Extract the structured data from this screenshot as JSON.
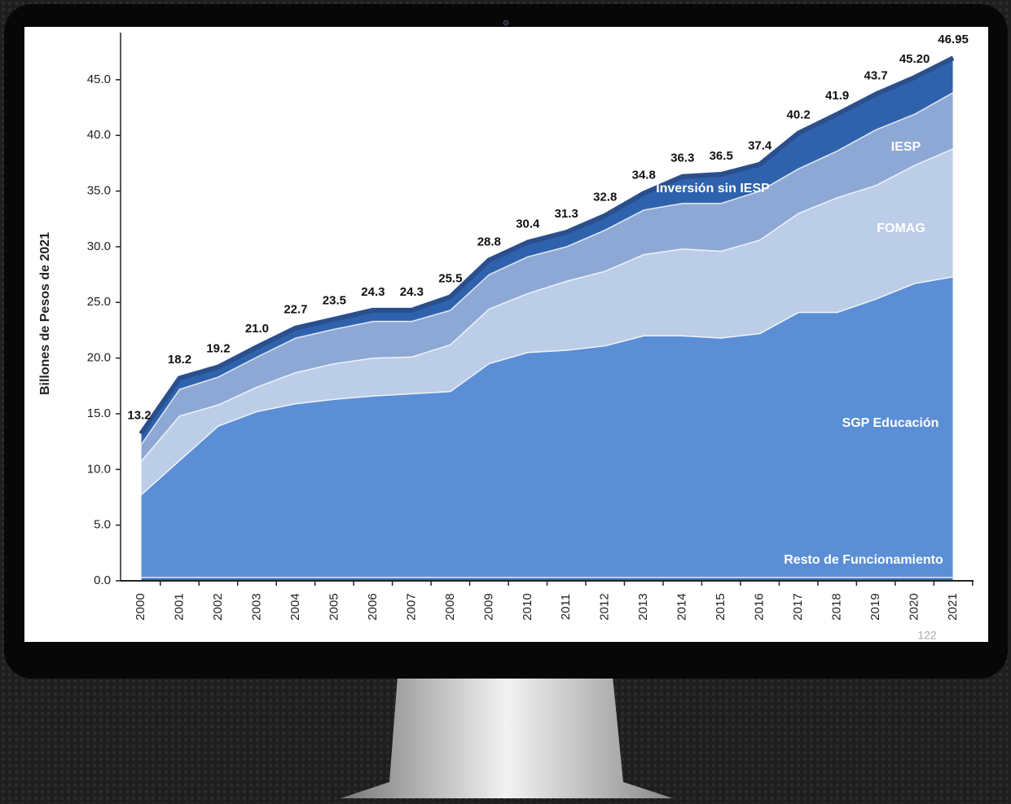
{
  "chart_data": {
    "type": "stacked-area",
    "y_label": "Billones de Pesos de 2021",
    "page_number": "122",
    "categories": [
      "2000",
      "2001",
      "2002",
      "2003",
      "2004",
      "2005",
      "2006",
      "2007",
      "2008",
      "2009",
      "2010",
      "2011",
      "2012",
      "2013",
      "2014",
      "2015",
      "2016",
      "2017",
      "2018",
      "2019",
      "2020",
      "2021"
    ],
    "series": [
      {
        "name": "Resto de Funcionamiento",
        "color": "#3d6db5",
        "values": [
          0.3,
          0.3,
          0.3,
          0.3,
          0.3,
          0.3,
          0.3,
          0.3,
          0.3,
          0.3,
          0.3,
          0.3,
          0.3,
          0.3,
          0.3,
          0.3,
          0.3,
          0.3,
          0.3,
          0.3,
          0.3,
          0.3
        ]
      },
      {
        "name": "SGP Educación",
        "color": "#5b8ed5",
        "values": [
          7.4,
          10.5,
          13.6,
          14.9,
          15.6,
          16.0,
          16.3,
          16.5,
          16.7,
          19.2,
          20.2,
          20.4,
          20.8,
          21.7,
          21.7,
          21.5,
          21.9,
          23.8,
          23.8,
          25.0,
          26.4,
          27.0
        ]
      },
      {
        "name": "FOMAG",
        "color": "#bccde7",
        "values": [
          3.0,
          4.0,
          1.9,
          2.2,
          2.8,
          3.2,
          3.4,
          3.3,
          4.2,
          4.9,
          5.3,
          6.2,
          6.7,
          7.3,
          7.8,
          7.8,
          8.4,
          8.9,
          10.3,
          10.2,
          10.6,
          11.5
        ]
      },
      {
        "name": "IESP",
        "color": "#8ea8d5",
        "values": [
          1.5,
          2.4,
          2.5,
          2.7,
          3.1,
          3.1,
          3.3,
          3.2,
          3.1,
          3.1,
          3.3,
          3.1,
          3.7,
          4.0,
          4.1,
          4.3,
          4.4,
          4.0,
          4.2,
          5.0,
          4.6,
          5.05
        ]
      },
      {
        "name": "Inversión sin IESP",
        "color": "#2f62ad",
        "values": [
          1.0,
          1.0,
          0.9,
          0.9,
          0.9,
          0.9,
          1.0,
          1.0,
          1.2,
          1.3,
          1.3,
          1.3,
          1.3,
          1.5,
          2.4,
          2.6,
          2.4,
          3.2,
          3.3,
          3.2,
          3.3,
          3.1
        ]
      }
    ],
    "values": [
      13.2,
      18.2,
      19.2,
      21.0,
      22.7,
      23.5,
      24.3,
      24.3,
      25.5,
      28.8,
      30.4,
      31.3,
      32.8,
      34.8,
      36.3,
      36.5,
      37.4,
      40.2,
      41.9,
      43.7,
      45.2,
      46.95
    ],
    "value_labels": [
      "13.2",
      "18.2",
      "19.2",
      "21.0",
      "22.7",
      "23.5",
      "24.3",
      "24.3",
      "25.5",
      "28.8",
      "30.4",
      "31.3",
      "32.8",
      "34.8",
      "36.3",
      "36.5",
      "37.4",
      "40.2",
      "41.9",
      "43.7",
      "45.20",
      "46.95"
    ],
    "ylim": [
      0,
      50
    ],
    "yticks": [
      {
        "value": 0,
        "label": "0.0"
      },
      {
        "value": 5,
        "label": "5.0"
      },
      {
        "value": 10,
        "label": "10.0"
      },
      {
        "value": 15,
        "label": "15.0"
      },
      {
        "value": 20,
        "label": "20.0"
      },
      {
        "value": 25,
        "label": "25.0"
      },
      {
        "value": 30,
        "label": "30.0"
      },
      {
        "value": 35,
        "label": "35.0"
      },
      {
        "value": 40,
        "label": "40.0"
      },
      {
        "value": 45,
        "label": "45.0"
      }
    ],
    "total_color": "#2a4f8c"
  }
}
